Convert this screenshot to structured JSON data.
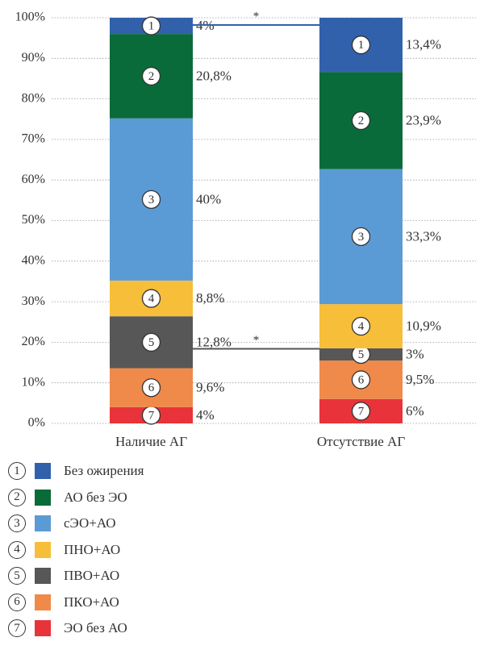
{
  "chart_data": {
    "type": "bar",
    "stacked": true,
    "categories": [
      "Наличие АГ",
      "Отсутствие АГ"
    ],
    "yticks": [
      "0%",
      "10%",
      "20%",
      "30%",
      "40%",
      "50%",
      "60%",
      "70%",
      "80%",
      "90%",
      "100%"
    ],
    "ylim": [
      0,
      100
    ],
    "grid": "horizontal dotted",
    "series": [
      {
        "num": "7",
        "name": "ЭО без АО",
        "color": "#e8333a",
        "values": [
          4,
          6
        ],
        "labels": [
          "4%",
          "6%"
        ]
      },
      {
        "num": "6",
        "name": "ПКО+АО",
        "color": "#ef8a4a",
        "values": [
          9.6,
          9.5
        ],
        "labels": [
          "9,6%",
          "9,5%"
        ]
      },
      {
        "num": "5",
        "name": "ПВО+АО",
        "color": "#575757",
        "values": [
          12.8,
          3
        ],
        "labels": [
          "12,8%",
          "3%"
        ]
      },
      {
        "num": "4",
        "name": "ПНО+АО",
        "color": "#f7be3a",
        "values": [
          8.8,
          10.9
        ],
        "labels": [
          "8,8%",
          "10,9%"
        ]
      },
      {
        "num": "3",
        "name": "сЭО+АО",
        "color": "#5b9bd5",
        "values": [
          40,
          33.3
        ],
        "labels": [
          "40%",
          "33,3%"
        ]
      },
      {
        "num": "2",
        "name": "АО без ЭО",
        "color": "#0a6b3a",
        "values": [
          20.8,
          23.9
        ],
        "labels": [
          "20,8%",
          "23,9%"
        ]
      },
      {
        "num": "1",
        "name": "Без ожирения",
        "color": "#3261ac",
        "values": [
          4,
          13.4
        ],
        "labels": [
          "4%",
          "13,4%"
        ]
      }
    ],
    "significance": [
      {
        "series": "1",
        "label": "*",
        "color": "#3261ac"
      },
      {
        "series": "5",
        "label": "*",
        "color": "#555555"
      }
    ]
  },
  "legend_order": [
    "1",
    "2",
    "3",
    "4",
    "5",
    "6",
    "7"
  ]
}
